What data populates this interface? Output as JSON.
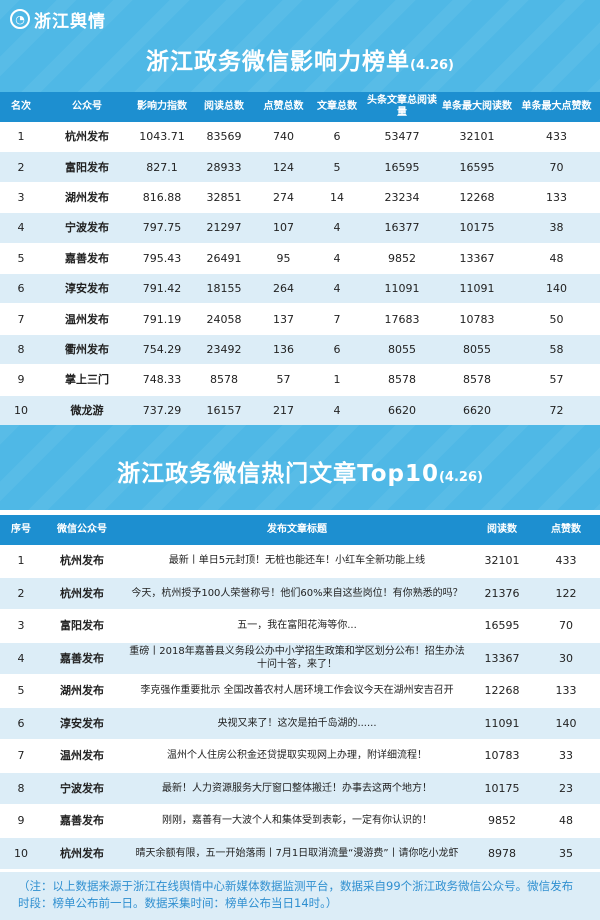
{
  "logo": {
    "text": "浙江舆情"
  },
  "ranking": {
    "title": "浙江政务微信影响力榜单",
    "date": "(4.26)",
    "headers": [
      "名次",
      "公众号",
      "影响力指数",
      "阅读总数",
      "点赞总数",
      "文章总数",
      "头条文章总阅读量",
      "单条最大阅读数",
      "单条最大点赞数"
    ],
    "rows": [
      [
        "1",
        "杭州发布",
        "1043.71",
        "83569",
        "740",
        "6",
        "53477",
        "32101",
        "433"
      ],
      [
        "2",
        "富阳发布",
        "827.1",
        "28933",
        "124",
        "5",
        "16595",
        "16595",
        "70"
      ],
      [
        "3",
        "湖州发布",
        "816.88",
        "32851",
        "274",
        "14",
        "23234",
        "12268",
        "133"
      ],
      [
        "4",
        "宁波发布",
        "797.75",
        "21297",
        "107",
        "4",
        "16377",
        "10175",
        "38"
      ],
      [
        "5",
        "嘉善发布",
        "795.43",
        "26491",
        "95",
        "4",
        "9852",
        "13367",
        "48"
      ],
      [
        "6",
        "淳安发布",
        "791.42",
        "18155",
        "264",
        "4",
        "11091",
        "11091",
        "140"
      ],
      [
        "7",
        "温州发布",
        "791.19",
        "24058",
        "137",
        "7",
        "17683",
        "10783",
        "50"
      ],
      [
        "8",
        "衢州发布",
        "754.29",
        "23492",
        "136",
        "6",
        "8055",
        "8055",
        "58"
      ],
      [
        "9",
        "掌上三门",
        "748.33",
        "8578",
        "57",
        "1",
        "8578",
        "8578",
        "57"
      ],
      [
        "10",
        "微龙游",
        "737.29",
        "16157",
        "217",
        "4",
        "6620",
        "6620",
        "72"
      ]
    ]
  },
  "articles": {
    "title": "浙江政务微信热门文章Top10",
    "date": "(4.26)",
    "headers": [
      "序号",
      "微信公众号",
      "发布文章标题",
      "阅读数",
      "点赞数"
    ],
    "rows": [
      [
        "1",
        "杭州发布",
        "最新丨单日5元封顶！无桩也能还车！小红车全新功能上线",
        "32101",
        "433"
      ],
      [
        "2",
        "杭州发布",
        "今天，杭州授予100人荣誉称号！他们60%来自这些岗位！有你熟悉的吗？",
        "21376",
        "122"
      ],
      [
        "3",
        "富阳发布",
        "五一，我在富阳花海等你...",
        "16595",
        "70"
      ],
      [
        "4",
        "嘉善发布",
        "重磅丨2018年嘉善县义务段公办中小学招生政策和学区划分公布！招生办法十问十答，来了！",
        "13367",
        "30"
      ],
      [
        "5",
        "湖州发布",
        "李克强作重要批示 全国改善农村人居环境工作会议今天在湖州安吉召开",
        "12268",
        "133"
      ],
      [
        "6",
        "淳安发布",
        "央视又来了！这次是拍千岛湖的......",
        "11091",
        "140"
      ],
      [
        "7",
        "温州发布",
        "温州个人住房公积金还贷提取实现网上办理，附详细流程！",
        "10783",
        "33"
      ],
      [
        "8",
        "宁波发布",
        "最新！人力资源服务大厅窗口整体搬迁！办事去这两个地方！",
        "10175",
        "23"
      ],
      [
        "9",
        "嘉善发布",
        "刚刚，嘉善有一大波个人和集体受到表彰，一定有你认识的！",
        "9852",
        "48"
      ],
      [
        "10",
        "杭州发布",
        "晴天余额有限，五一开始落雨丨7月1日取消流量“漫游费”丨请你吃小龙虾",
        "8978",
        "35"
      ]
    ]
  },
  "footnote": "（注：以上数据来源于浙江在线舆情中心新媒体数据监测平台，数据采自99个浙江政务微信公众号。微信发布时段：榜单公布前一日。数据采集时间：榜单公布当日14时。）",
  "colors": {
    "banner": "#4fb8e6",
    "header": "#1d8fd0",
    "stripe": "#dcedf7",
    "footnote_text": "#2f8fd0"
  }
}
